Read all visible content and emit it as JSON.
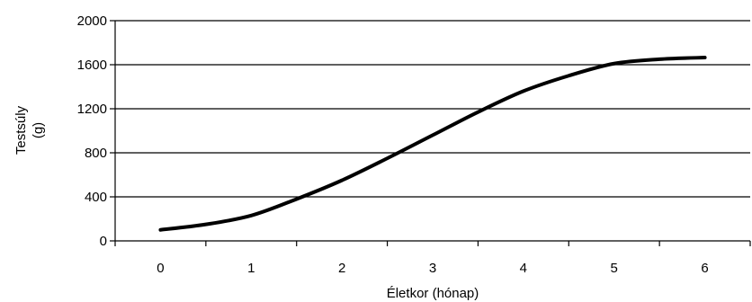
{
  "chart_data": {
    "type": "line",
    "title": "",
    "xlabel": "Életkor (hónap)",
    "ylabel_lines": [
      "Testsúly",
      "(g)"
    ],
    "xlim": [
      -0.5,
      6.5
    ],
    "ylim": [
      0,
      2000
    ],
    "x_ticks": [
      0,
      1,
      2,
      3,
      4,
      5,
      6
    ],
    "y_ticks": [
      0,
      400,
      800,
      1200,
      1600,
      2000
    ],
    "grid": "horizontal",
    "legend": "none",
    "line_color": "#000000",
    "series": [
      {
        "x": [
          0,
          0.5,
          1,
          1.5,
          2,
          2.5,
          3,
          3.5,
          4,
          4.5,
          5,
          5.5,
          6
        ],
        "values": [
          100,
          150,
          230,
          380,
          550,
          750,
          960,
          1170,
          1360,
          1500,
          1610,
          1650,
          1665
        ]
      }
    ]
  }
}
